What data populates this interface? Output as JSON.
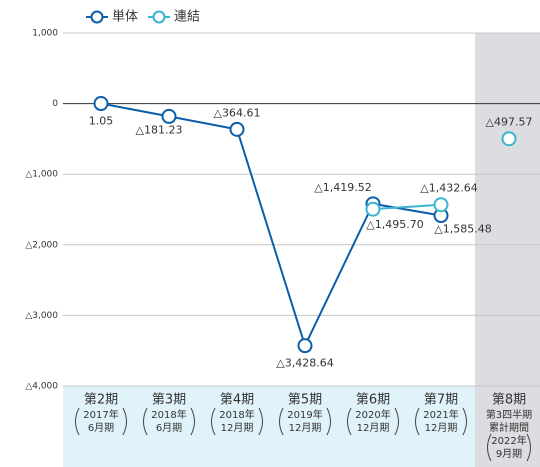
{
  "chart_data": {
    "type": "line",
    "categories": [
      "第2期",
      "第3期",
      "第4期",
      "第5期",
      "第6期",
      "第7期",
      "第8期"
    ],
    "category_details": [
      {
        "lines": [
          "2017年",
          "6月期"
        ]
      },
      {
        "lines": [
          "2018年",
          "6月期"
        ]
      },
      {
        "lines": [
          "2018年",
          "12月期"
        ]
      },
      {
        "lines": [
          "2019年",
          "12月期"
        ]
      },
      {
        "lines": [
          "2020年",
          "12月期"
        ]
      },
      {
        "lines": [
          "2021年",
          "12月期"
        ]
      },
      {
        "pre": [
          "第3四半期",
          "累計期間"
        ],
        "lines": [
          "2022年",
          "9月期"
        ]
      }
    ],
    "highlight_category": 6,
    "series": [
      {
        "name": "単体",
        "color": "#0b5ea8",
        "values": [
          1.05,
          -181.23,
          -364.61,
          -3428.64,
          -1419.52,
          -1585.48,
          null
        ],
        "value_labels": [
          "1.05",
          "△181.23",
          "△364.61",
          "△3,428.64",
          "△1,419.52",
          "△1,585.48",
          null
        ]
      },
      {
        "name": "連結",
        "color": "#3bb4d2",
        "values": [
          null,
          null,
          null,
          null,
          -1495.7,
          -1432.64,
          -497.57
        ],
        "value_labels": [
          null,
          null,
          null,
          null,
          "△1,495.70",
          "△1,432.64",
          "△497.57"
        ]
      }
    ],
    "ylim": [
      -4000,
      1000
    ],
    "yticks": [
      {
        "value": 1000,
        "label": "1,000"
      },
      0,
      {
        "value": -1000,
        "label": "△1,000"
      },
      {
        "value": -2000,
        "label": "△2,000"
      },
      {
        "value": -3000,
        "label": "△3,000"
      },
      {
        "value": -4000,
        "label": "△4,000"
      }
    ],
    "grid": true
  }
}
